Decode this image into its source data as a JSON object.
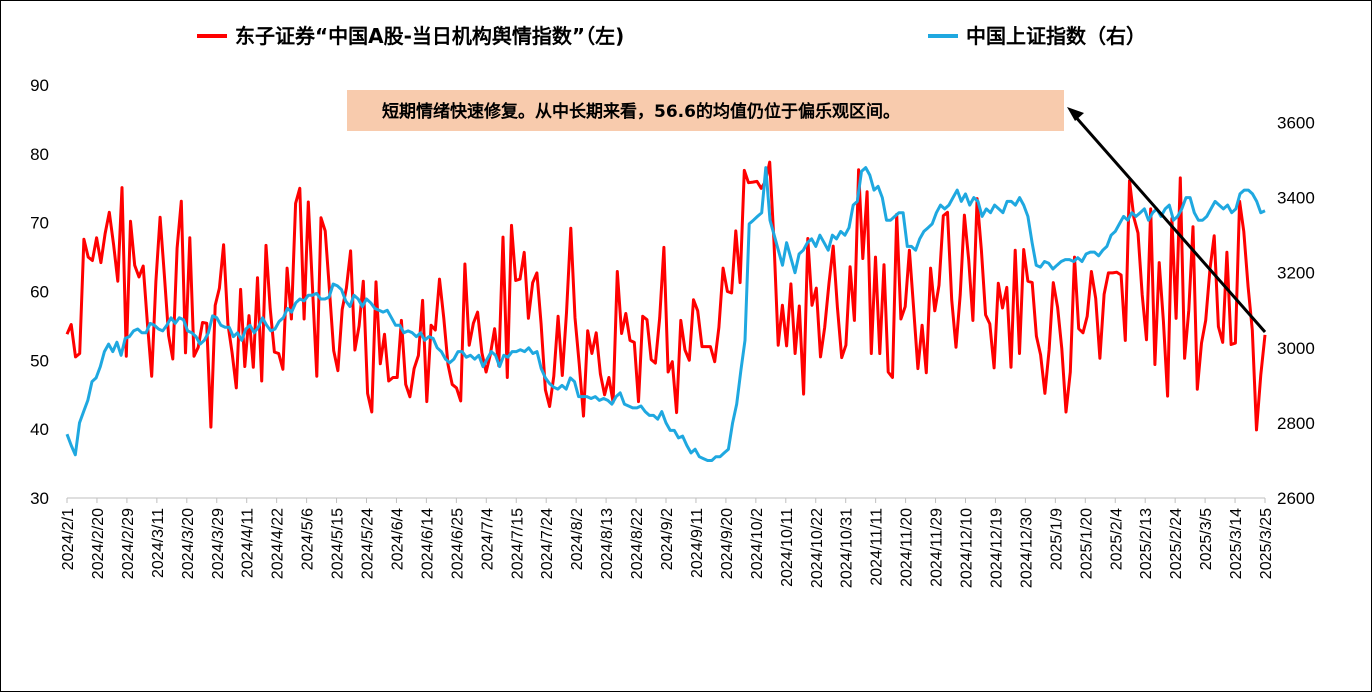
{
  "chart_data": {
    "type": "line",
    "legend": {
      "placement": "top",
      "entries": [
        {
          "name": "东子证券“中国A股-当日机构舆情指数”（左)",
          "color": "#ff0000"
        },
        {
          "name": "中国上证指数（右）",
          "color": "#1fa8e0"
        }
      ]
    },
    "annotation": {
      "text": "短期情绪快速修复。从中长期来看，56.6的均值仍位于偏乐观区间。",
      "background": "#f8cbad"
    },
    "y_left": {
      "min": 30,
      "max": 90,
      "ticks": [
        30,
        40,
        50,
        60,
        70,
        80,
        90
      ]
    },
    "y_right": {
      "min": 2600,
      "max": 3700,
      "ticks": [
        2600,
        2800,
        3000,
        3200,
        3400,
        3600
      ]
    },
    "x_labels": [
      "2024/2/1",
      "2024/2/20",
      "2024/2/29",
      "2024/3/11",
      "2024/3/20",
      "2024/3/29",
      "2024/4/11",
      "2024/4/22",
      "2024/5/6",
      "2024/5/15",
      "2024/5/24",
      "2024/6/4",
      "2024/6/14",
      "2024/6/25",
      "2024/7/4",
      "2024/7/15",
      "2024/7/24",
      "2024/8/2",
      "2024/8/13",
      "2024/8/22",
      "2024/9/2",
      "2024/9/11",
      "2024/9/20",
      "2024/10/2",
      "2024/10/11",
      "2024/10/22",
      "2024/10/31",
      "2024/11/11",
      "2024/11/20",
      "2024/11/29",
      "2024/12/10",
      "2024/12/19",
      "2024/12/30",
      "2025/1/9",
      "2025/1/20",
      "2025/2/4",
      "2025/2/13",
      "2025/2/24",
      "2025/3/5",
      "2025/3/14",
      "2025/3/25"
    ],
    "series": [
      {
        "name": "东子证券“中国A股-当日机构舆情指数”（左)",
        "axis": "left",
        "color": "#ff0000",
        "values": [
          53.8,
          55.2,
          50.5,
          51.0,
          67.6,
          65.0,
          64.5,
          67.8,
          64.2,
          68.4,
          71.5,
          66.8,
          61.5,
          75.1,
          50.6,
          70.2,
          63.8,
          62.1,
          63.7,
          55.4,
          47.7,
          61.5,
          70.8,
          62.3,
          53.6,
          50.2,
          66.3,
          73.1,
          51.1,
          67.8,
          50.6,
          51.9,
          55.5,
          55.4,
          40.3,
          58.0,
          60.5,
          66.8,
          55.3,
          51.1,
          46.0,
          60.3,
          49.1,
          56.5,
          49.0,
          62.0,
          47.0,
          66.7,
          57.5,
          51.2,
          51.0,
          48.7,
          63.4,
          56.0,
          72.8,
          75.0,
          56.0,
          73.0,
          60.5,
          47.7,
          70.7,
          68.8,
          60.1,
          51.4,
          48.5,
          57.4,
          60.5,
          65.9,
          51.5,
          55.0,
          61.5,
          45.2,
          42.5,
          61.4,
          49.5,
          53.8,
          47.0,
          47.5,
          47.5,
          55.8,
          46.5,
          44.7,
          48.8,
          50.7,
          58.7,
          44.0,
          55.1,
          54.4,
          61.8,
          56.1,
          49.4,
          46.5,
          46.0,
          44.1,
          64.0,
          52.2,
          55.4,
          57.0,
          51.1,
          48.3,
          50.8,
          54.6,
          49.2,
          67.9,
          47.5,
          69.6,
          61.6,
          61.8,
          65.7,
          56.1,
          61.3,
          62.7,
          55.3,
          45.7,
          43.3,
          47.7,
          56.4,
          47.8,
          56.9,
          69.2,
          56.2,
          49.5,
          41.9,
          54.3,
          51.0,
          54.0,
          48.0,
          45.0,
          47.5,
          43.9,
          62.9,
          53.9,
          56.8,
          52.9,
          52.6,
          44.0,
          56.4,
          55.9,
          50.1,
          49.6,
          56.2,
          66.4,
          48.3,
          49.8,
          42.4,
          55.8,
          51.5,
          50.0,
          58.8,
          57.2,
          52.0,
          52.0,
          52.0,
          49.8,
          54.8,
          63.4,
          60.0,
          59.8,
          68.8,
          61.3,
          77.6,
          75.8,
          75.9,
          76.0,
          75.0,
          76.0,
          78.8,
          67.5,
          52.2,
          58.0,
          52.1,
          61.1,
          51.0,
          57.9,
          45.1,
          67.7,
          58.0,
          60.5,
          50.5,
          54.8,
          61.2,
          66.6,
          57.7,
          50.4,
          52.2,
          63.6,
          55.8,
          77.7,
          64.8,
          74.5,
          51.0,
          65.0,
          51.0,
          63.9,
          48.3,
          47.5,
          71.2,
          56.0,
          57.8,
          66.0,
          57.6,
          48.8,
          55.1,
          48.2,
          63.4,
          57.2,
          60.9,
          71.0,
          71.5,
          58.8,
          51.9,
          59.5,
          71.1,
          64.6,
          55.8,
          73.5,
          66.0,
          56.6,
          55.3,
          48.9,
          61.2,
          57.6,
          60.6,
          49.0,
          66.0,
          51.0,
          66.1,
          61.5,
          61.3,
          53.5,
          50.8,
          45.2,
          51.5,
          61.3,
          57.7,
          51.7,
          42.5,
          48.3,
          65.0,
          54.6,
          54.0,
          56.4,
          62.9,
          59.0,
          50.3,
          59.6,
          62.7,
          62.7,
          62.8,
          62.4,
          52.9,
          76.1,
          70.8,
          68.5,
          59.5,
          53.0,
          72.0,
          49.4,
          64.2,
          55.7,
          44.8,
          70.6,
          56.1,
          76.5,
          50.3,
          57.3,
          69.4,
          45.8,
          52.5,
          55.8,
          63.3,
          68.1,
          54.9,
          52.6,
          65.7,
          52.3,
          52.5,
          73.1,
          68.7,
          60.7,
          54.4,
          39.9,
          47.9,
          53.7
        ]
      },
      {
        "name": "中国上证指数（右）",
        "axis": "right",
        "color": "#1fa8e0",
        "values": [
          2770,
          2740,
          2715,
          2800,
          2830,
          2860,
          2910,
          2920,
          2950,
          2990,
          3010,
          2990,
          3015,
          2980,
          3025,
          3030,
          3045,
          3050,
          3040,
          3040,
          3065,
          3060,
          3050,
          3045,
          3060,
          3080,
          3065,
          3080,
          3075,
          3045,
          3040,
          3030,
          3010,
          3020,
          3040,
          3085,
          3080,
          3060,
          3055,
          3055,
          3030,
          3040,
          3020,
          3050,
          3060,
          3040,
          3055,
          3080,
          3060,
          3045,
          3050,
          3070,
          3080,
          3105,
          3095,
          3120,
          3130,
          3125,
          3140,
          3140,
          3145,
          3130,
          3130,
          3135,
          3170,
          3165,
          3155,
          3125,
          3110,
          3140,
          3130,
          3110,
          3130,
          3120,
          3105,
          3100,
          3095,
          3100,
          3080,
          3060,
          3060,
          3040,
          3045,
          3040,
          3030,
          3040,
          3020,
          3030,
          3025,
          3000,
          2990,
          2970,
          2960,
          2970,
          2990,
          2990,
          2975,
          2980,
          2970,
          2980,
          2950,
          2970,
          2990,
          2980,
          2950,
          2980,
          2975,
          2990,
          2990,
          2995,
          2990,
          3000,
          2985,
          2990,
          2945,
          2920,
          2905,
          2895,
          2890,
          2900,
          2890,
          2920,
          2910,
          2870,
          2870,
          2870,
          2865,
          2870,
          2860,
          2865,
          2860,
          2850,
          2870,
          2880,
          2850,
          2845,
          2840,
          2840,
          2845,
          2830,
          2820,
          2820,
          2810,
          2830,
          2800,
          2780,
          2780,
          2760,
          2765,
          2740,
          2720,
          2730,
          2710,
          2705,
          2700,
          2700,
          2710,
          2710,
          2720,
          2730,
          2800,
          2850,
          2940,
          3020,
          3330,
          3340,
          3350,
          3360,
          3480,
          3340,
          3300,
          3260,
          3220,
          3280,
          3240,
          3200,
          3250,
          3260,
          3280,
          3290,
          3270,
          3300,
          3280,
          3260,
          3300,
          3290,
          3310,
          3300,
          3320,
          3380,
          3390,
          3470,
          3480,
          3460,
          3420,
          3430,
          3400,
          3340,
          3340,
          3350,
          3360,
          3360,
          3270,
          3270,
          3260,
          3290,
          3310,
          3320,
          3330,
          3360,
          3380,
          3370,
          3380,
          3400,
          3420,
          3390,
          3410,
          3380,
          3400,
          3390,
          3350,
          3370,
          3360,
          3380,
          3370,
          3360,
          3390,
          3390,
          3380,
          3400,
          3380,
          3350,
          3280,
          3220,
          3215,
          3230,
          3225,
          3210,
          3220,
          3230,
          3235,
          3235,
          3230,
          3240,
          3230,
          3250,
          3255,
          3255,
          3245,
          3260,
          3270,
          3300,
          3310,
          3330,
          3350,
          3340,
          3360,
          3350,
          3360,
          3370,
          3340,
          3360,
          3370,
          3350,
          3370,
          3380,
          3340,
          3350,
          3370,
          3400,
          3400,
          3360,
          3340,
          3340,
          3350,
          3370,
          3390,
          3380,
          3370,
          3380,
          3360,
          3370,
          3410,
          3420,
          3420,
          3410,
          3390,
          3360,
          3365
        ]
      }
    ]
  }
}
